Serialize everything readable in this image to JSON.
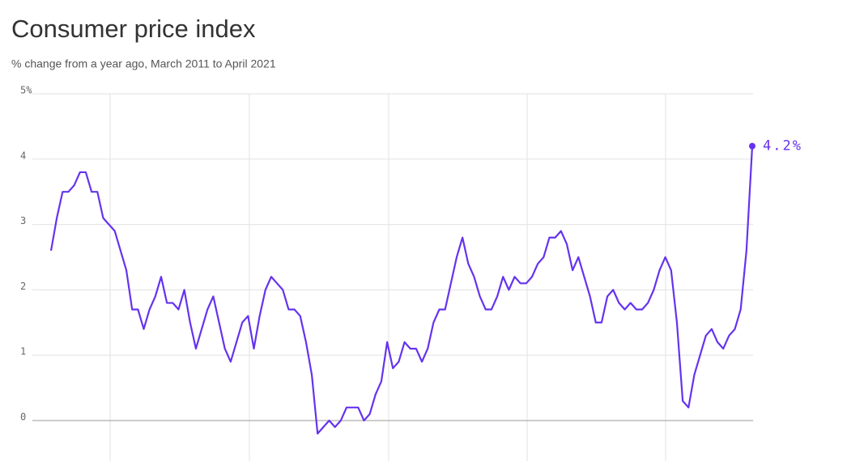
{
  "chart_data": {
    "type": "line",
    "title": "Consumer price index",
    "subtitle": "% change from a year ago, March 2011 to April 2021",
    "categories": [
      null,
      null,
      null,
      null,
      null,
      null,
      null,
      null,
      null,
      null,
      null,
      null,
      null,
      null,
      null,
      null,
      null,
      null,
      null,
      null,
      null,
      null,
      null,
      null,
      null,
      null,
      null,
      null,
      null,
      null,
      null,
      null,
      null,
      null,
      null,
      null,
      null,
      null,
      null,
      null,
      null,
      null,
      null,
      null,
      null,
      null,
      null,
      null,
      null,
      null,
      null,
      null,
      null,
      null,
      null,
      null,
      null,
      null,
      null,
      null,
      null,
      null,
      null,
      null,
      null,
      null,
      null,
      null,
      null,
      null,
      null,
      null,
      null,
      null,
      null,
      null,
      null,
      null,
      null,
      null,
      null,
      null,
      null,
      null,
      null,
      null,
      null,
      null,
      null,
      null,
      null,
      null,
      null,
      null,
      null,
      null,
      null,
      null,
      null,
      null,
      null,
      null,
      null,
      null,
      null,
      null,
      null,
      null,
      null,
      null,
      null,
      null,
      null,
      null,
      null,
      null,
      null,
      null,
      null,
      null,
      null,
      null
    ],
    "values": [
      2.6,
      3.1,
      3.5,
      3.5,
      3.6,
      3.8,
      3.8,
      3.5,
      3.5,
      3.1,
      3.0,
      2.9,
      2.6,
      2.3,
      1.7,
      1.7,
      1.4,
      1.7,
      1.9,
      2.2,
      1.8,
      1.8,
      1.7,
      2.0,
      1.5,
      1.1,
      1.4,
      1.7,
      1.9,
      1.5,
      1.1,
      0.9,
      1.2,
      1.5,
      1.6,
      1.1,
      1.6,
      2.0,
      2.2,
      2.1,
      2.0,
      1.7,
      1.7,
      1.6,
      1.2,
      0.7,
      -0.2,
      -0.1,
      0.0,
      -0.1,
      0.0,
      0.2,
      0.2,
      0.2,
      0.0,
      0.1,
      0.4,
      0.6,
      1.2,
      0.8,
      0.9,
      1.2,
      1.1,
      1.1,
      0.9,
      1.1,
      1.5,
      1.7,
      1.7,
      2.1,
      2.5,
      2.8,
      2.4,
      2.2,
      1.9,
      1.7,
      1.7,
      1.9,
      2.2,
      2.0,
      2.2,
      2.1,
      2.1,
      2.2,
      2.4,
      2.5,
      2.8,
      2.8,
      2.9,
      2.7,
      2.3,
      2.5,
      2.2,
      1.9,
      1.5,
      1.5,
      1.9,
      2.0,
      1.8,
      1.7,
      1.8,
      1.7,
      1.7,
      1.8,
      2.0,
      2.3,
      2.5,
      2.3,
      1.5,
      0.3,
      0.2,
      0.7,
      1.0,
      1.3,
      1.4,
      1.2,
      1.1,
      1.3,
      1.4,
      1.7,
      2.6,
      4.2
    ],
    "value_labels": [
      null,
      null,
      null,
      null,
      null,
      null,
      null,
      null,
      null,
      null,
      null,
      null,
      null,
      null,
      null,
      null,
      null,
      null,
      null,
      null,
      null,
      null,
      null,
      null,
      null,
      null,
      null,
      null,
      null,
      null,
      null,
      null,
      null,
      null,
      null,
      null,
      null,
      null,
      null,
      null,
      null,
      null,
      null,
      null,
      null,
      null,
      null,
      null,
      null,
      null,
      null,
      null,
      null,
      null,
      null,
      null,
      null,
      null,
      null,
      null,
      null,
      null,
      null,
      null,
      null,
      null,
      null,
      null,
      null,
      null,
      null,
      null,
      null,
      null,
      null,
      null,
      null,
      null,
      null,
      null,
      null,
      null,
      null,
      null,
      null,
      null,
      null,
      null,
      null,
      null,
      null,
      null,
      null,
      null,
      null,
      null,
      null,
      null,
      null,
      null,
      null,
      null,
      null,
      null,
      null,
      null,
      null,
      null,
      null,
      null,
      null,
      null,
      null,
      null,
      null,
      null,
      null,
      null,
      null,
      null,
      null,
      "4.2%"
    ],
    "color": "#6533ee",
    "ylim": [
      -0.55,
      5
    ],
    "yticks": [
      0,
      1,
      2,
      3,
      4,
      {
        "value": 5,
        "label": "5%"
      }
    ],
    "grid": true
  }
}
